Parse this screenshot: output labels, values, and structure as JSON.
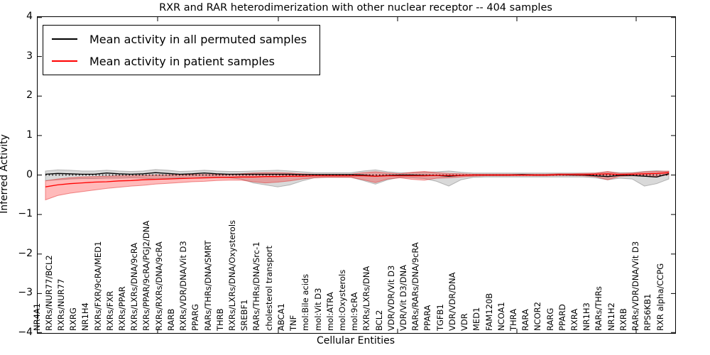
{
  "chart_data": {
    "type": "line",
    "title": "RXR and RAR heterodimerization with other nuclear receptor -- 404 samples",
    "xlabel": "Cellular Entities",
    "ylabel": "Inferred Activity",
    "ylim": [
      -4,
      4
    ],
    "yticks": [
      4,
      3,
      2,
      1,
      0,
      -1,
      -2,
      -3,
      -4
    ],
    "ytick_labels": [
      "4",
      "3",
      "2",
      "1",
      "0",
      "−1",
      "−2",
      "−3",
      "−4"
    ],
    "grid": false,
    "legend_position": "upper left",
    "zero_line": {
      "style": "dotted",
      "color": "#000000",
      "y": 0
    },
    "categories": [
      "NR4A1",
      "RXRs/NUR77/BCL2",
      "RXRs/NUR77",
      "RXRG",
      "NR1H4",
      "RXRs/FXR/9cRA/MED1",
      "RXRs/FXR",
      "RXRs/PPAR",
      "RXRs/LXRs/DNA/9cRA",
      "RXRs/PPAR/9cRA/PGJ2/DNA",
      "RXRs/RXRs/DNA/9cRA",
      "RARB",
      "RXRs/VDR/DNA/Vit D3",
      "PPARG",
      "RARs/THRs/DNA/SMRT",
      "THRB",
      "RXRs/LXRs/DNA/Oxysterols",
      "SREBF1",
      "RARs/THRs/DNA/Src-1",
      "cholesterol transport",
      "ABCA1",
      "TNF",
      "mol:Bile acids",
      "mol:Vit D3",
      "mol:ATRA",
      "mol:Oxysterols",
      "mol:9cRA",
      "RXRs/LXRs/DNA",
      "BCL2",
      "VDR/VDR/Vit D3",
      "VDR/Vit D3/DNA",
      "RARs/RARs/DNA/9cRA",
      "PPARA",
      "TGFB1",
      "VDR/VDR/DNA",
      "VDR",
      "MED1",
      "FAM120B",
      "NCOA1",
      "THRA",
      "RARA",
      "NCOR2",
      "RARG",
      "PPARD",
      "RXRA",
      "NR1H3",
      "RARs/THRs",
      "NR1H2",
      "RXRB",
      "RARs/VDR/DNA/Vit D3",
      "RPS6KB1",
      "RXR alpha/CCPG"
    ],
    "series": [
      {
        "id": "permuted",
        "name": "Mean activity in all permuted samples",
        "color": "#000000",
        "band_fill": "rgba(120,120,120,0.28)",
        "band_edge": "rgba(110,110,110,0.45)",
        "values": [
          0.02,
          0.04,
          0.03,
          0.02,
          0.02,
          0.05,
          0.03,
          0.02,
          0.03,
          0.06,
          0.04,
          0.02,
          0.03,
          0.05,
          0.03,
          0.02,
          0.02,
          0.02,
          0.02,
          0.02,
          0.02,
          0.01,
          0.01,
          0.01,
          0.01,
          0.01,
          0.0,
          -0.03,
          -0.01,
          0.0,
          0.0,
          -0.01,
          -0.01,
          -0.03,
          -0.01,
          0.0,
          0.0,
          0.0,
          0.0,
          0.01,
          0.0,
          0.0,
          0.01,
          0.0,
          0.0,
          -0.02,
          -0.04,
          -0.01,
          -0.01,
          -0.03,
          -0.05,
          0.03
        ],
        "band_upper": [
          0.1,
          0.13,
          0.12,
          0.1,
          0.1,
          0.12,
          0.1,
          0.09,
          0.1,
          0.14,
          0.12,
          0.09,
          0.1,
          0.12,
          0.1,
          0.09,
          0.09,
          0.1,
          0.11,
          0.12,
          0.1,
          0.08,
          0.06,
          0.06,
          0.06,
          0.06,
          0.1,
          0.13,
          0.08,
          0.06,
          0.06,
          0.07,
          0.08,
          0.1,
          0.07,
          0.05,
          0.05,
          0.05,
          0.05,
          0.05,
          0.05,
          0.05,
          0.05,
          0.05,
          0.05,
          0.05,
          0.08,
          0.06,
          0.06,
          0.09,
          0.11,
          0.09
        ],
        "band_lower": [
          -0.14,
          -0.12,
          -0.1,
          -0.09,
          -0.09,
          -0.08,
          -0.08,
          -0.07,
          -0.08,
          -0.1,
          -0.09,
          -0.07,
          -0.08,
          -0.08,
          -0.07,
          -0.07,
          -0.1,
          -0.2,
          -0.25,
          -0.3,
          -0.25,
          -0.15,
          -0.07,
          -0.06,
          -0.06,
          -0.06,
          -0.14,
          -0.23,
          -0.12,
          -0.06,
          -0.07,
          -0.09,
          -0.16,
          -0.28,
          -0.12,
          -0.06,
          -0.05,
          -0.05,
          -0.05,
          -0.05,
          -0.05,
          -0.05,
          -0.05,
          -0.05,
          -0.05,
          -0.07,
          -0.12,
          -0.08,
          -0.1,
          -0.28,
          -0.22,
          -0.1
        ]
      },
      {
        "id": "patient",
        "name": "Mean activity in patient samples",
        "color": "#ff0000",
        "band_fill": "rgba(255,0,0,0.27)",
        "band_edge": "rgba(225,40,40,0.5)",
        "values": [
          -0.3,
          -0.25,
          -0.22,
          -0.2,
          -0.18,
          -0.17,
          -0.15,
          -0.14,
          -0.12,
          -0.11,
          -0.1,
          -0.09,
          -0.08,
          -0.07,
          -0.06,
          -0.06,
          -0.05,
          -0.05,
          -0.04,
          -0.04,
          -0.03,
          -0.03,
          -0.02,
          -0.02,
          -0.02,
          -0.02,
          -0.02,
          -0.03,
          -0.02,
          -0.02,
          -0.02,
          -0.02,
          -0.01,
          -0.01,
          -0.01,
          0.0,
          0.0,
          0.0,
          0.0,
          0.0,
          0.0,
          0.0,
          0.01,
          0.01,
          0.01,
          0.02,
          0.03,
          0.01,
          0.02,
          0.03,
          0.04,
          0.06
        ],
        "band_upper": [
          -0.15,
          -0.1,
          -0.07,
          -0.05,
          -0.04,
          -0.03,
          -0.02,
          -0.02,
          -0.01,
          0.0,
          0.0,
          0.01,
          0.01,
          0.01,
          0.01,
          0.02,
          0.03,
          0.05,
          0.06,
          0.06,
          0.05,
          0.03,
          0.02,
          0.02,
          0.02,
          0.02,
          0.06,
          0.08,
          0.05,
          0.03,
          0.07,
          0.09,
          0.06,
          0.04,
          0.03,
          0.02,
          0.02,
          0.02,
          0.02,
          0.02,
          0.02,
          0.02,
          0.03,
          0.03,
          0.04,
          0.05,
          0.09,
          0.04,
          0.05,
          0.08,
          0.09,
          0.1
        ],
        "band_lower": [
          -0.63,
          -0.52,
          -0.46,
          -0.42,
          -0.38,
          -0.34,
          -0.31,
          -0.28,
          -0.26,
          -0.23,
          -0.21,
          -0.19,
          -0.17,
          -0.16,
          -0.14,
          -0.13,
          -0.13,
          -0.17,
          -0.2,
          -0.18,
          -0.15,
          -0.1,
          -0.07,
          -0.06,
          -0.06,
          -0.06,
          -0.12,
          -0.19,
          -0.1,
          -0.07,
          -0.11,
          -0.13,
          -0.08,
          -0.07,
          -0.05,
          -0.03,
          -0.02,
          -0.02,
          -0.02,
          -0.02,
          -0.02,
          -0.02,
          -0.01,
          -0.01,
          -0.02,
          -0.04,
          -0.12,
          -0.03,
          -0.02,
          -0.03,
          -0.04,
          0.01
        ]
      }
    ]
  },
  "legend": {
    "items": [
      {
        "label": "Mean activity in all permuted samples",
        "color": "#000000"
      },
      {
        "label": "Mean activity in patient samples",
        "color": "#ff0000"
      }
    ]
  }
}
